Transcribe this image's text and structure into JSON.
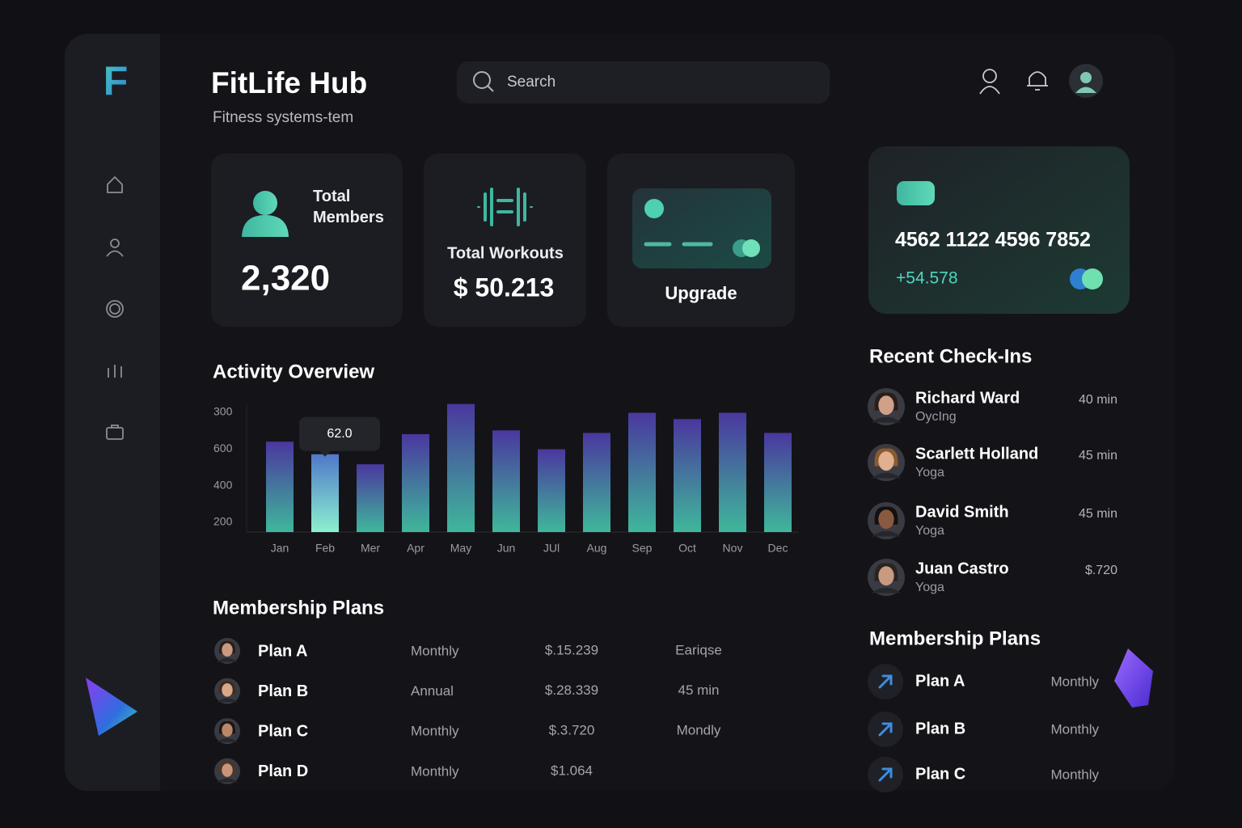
{
  "header": {
    "logo": "F",
    "title": "FitLife Hub",
    "subtitle": "Fitness systems-tem",
    "search": "Search"
  },
  "stats": {
    "members_label": "Total Members",
    "members_value": "2,320",
    "workouts_label": "Total Workouts",
    "workouts_value": "$ 50.213",
    "upgrade": "Upgrade"
  },
  "card": {
    "number": "4562 1122 4596 7852",
    "balance": "+54.578"
  },
  "chart_data": {
    "type": "bar",
    "title": "Activity Overview",
    "categories": [
      "Jan",
      "Feb",
      "Mer",
      "Apr",
      "May",
      "Jun",
      "JUl",
      "Aug",
      "Sep",
      "Oct",
      "Nov",
      "Dec"
    ],
    "values": [
      72,
      62,
      54,
      78,
      102,
      81,
      66,
      79,
      95,
      90,
      95,
      79
    ],
    "value_labels": [
      null,
      "62.0",
      null,
      null,
      null,
      null,
      null,
      null,
      null,
      null,
      null,
      null
    ],
    "ylim": [
      0,
      105
    ],
    "y_labels": [
      "300",
      "600",
      "400",
      "200"
    ]
  },
  "membership_plans": {
    "title": "Membership Plans",
    "rows": [
      {
        "name": "Plan A",
        "period": "Monthly",
        "price": "$.15.239",
        "extra": "Eariqse"
      },
      {
        "name": "Plan B",
        "period": "Annual",
        "price": "$.28.339",
        "extra": "45 min"
      },
      {
        "name": "Plan C",
        "period": "Monthly",
        "price": "$.3.720",
        "extra": "Mondly"
      },
      {
        "name": "Plan D",
        "period": "Monthly",
        "price": "$1.064"
      }
    ]
  },
  "recent_checkins": {
    "title": "Recent Check-Ins",
    "items": [
      {
        "name": "Richard Ward",
        "activity": "OycIng",
        "value": "40 min"
      },
      {
        "name": "Scarlett Holland",
        "activity": "Yoga",
        "value": "45 min"
      },
      {
        "name": "David Smith",
        "activity": "Yoga",
        "value": "45 min"
      },
      {
        "name": "Juan Castro",
        "activity": "Yoga",
        "value": "$.720"
      }
    ]
  },
  "side_plans": {
    "title": "Membership Plans",
    "items": [
      {
        "name": "Plan A",
        "period": "Monthly"
      },
      {
        "name": "Plan B",
        "period": "Monthly"
      },
      {
        "name": "Plan C",
        "period": "Monthly"
      }
    ]
  }
}
